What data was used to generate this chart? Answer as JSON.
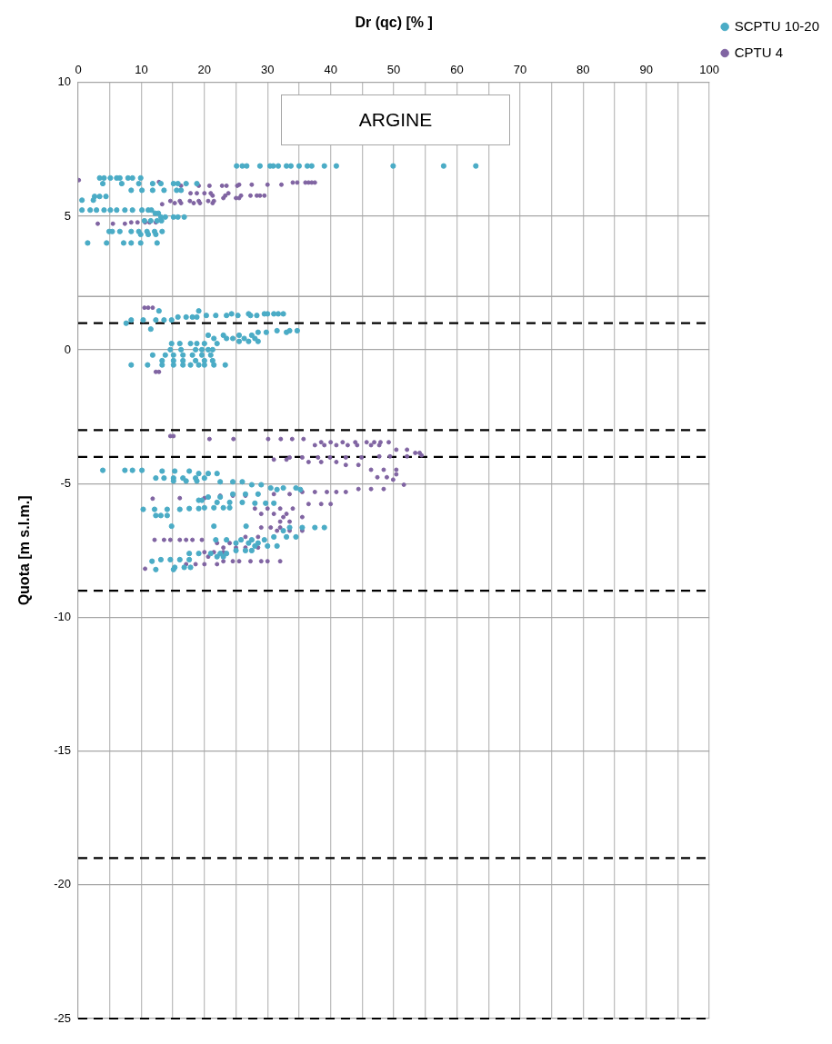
{
  "chart_data": {
    "type": "scatter",
    "xlabel": "Dr (qc) [% ]",
    "ylabel": "Quota [m s.l.m.]",
    "annotations": [
      "ARGINE"
    ],
    "xlim": [
      0,
      100
    ],
    "xticks": [
      0,
      {
        "value": 5,
        "label": null
      },
      10,
      {
        "value": 15,
        "label": null
      },
      20,
      {
        "value": 25,
        "label": null
      },
      30,
      {
        "value": 35,
        "label": null
      },
      40,
      {
        "value": 45,
        "label": null
      },
      50,
      {
        "value": 55,
        "label": null
      },
      60,
      {
        "value": 65,
        "label": null
      },
      70,
      {
        "value": 75,
        "label": null
      },
      80,
      {
        "value": 85,
        "label": null
      },
      90,
      {
        "value": 95,
        "label": null
      },
      100
    ],
    "ylim": [
      -25,
      10
    ],
    "yticks": [
      -25,
      -20,
      -15,
      -10,
      -5,
      0,
      5,
      10
    ],
    "grid": true,
    "legend": "top right",
    "marker": "circle",
    "ref_lines": [
      {
        "axis": "y",
        "value": 2,
        "color": "#a6a6a6",
        "line_style": "solid"
      },
      {
        "axis": "y",
        "value": 1,
        "color": "#000000",
        "line_style": "dashed"
      },
      {
        "axis": "y",
        "value": -3,
        "color": "#000000",
        "line_style": "dashed"
      },
      {
        "axis": "y",
        "value": -4,
        "color": "#000000",
        "line_style": "dashed"
      },
      {
        "axis": "y",
        "value": -9,
        "color": "#000000",
        "line_style": "dashed"
      },
      {
        "axis": "y",
        "value": -19,
        "color": "#000000",
        "line_style": "dashed"
      },
      {
        "axis": "y",
        "value": -25,
        "color": "#000000",
        "line_style": "dashed"
      }
    ],
    "series": [
      {
        "name": "SCPTU 10-20",
        "color": "#4bacc6",
        "x": [
          25.1,
          26.0,
          26.7,
          28.8,
          30.4,
          30.9,
          31.7,
          33.0,
          33.7,
          35.0,
          36.3,
          37.0,
          39.0,
          40.9,
          49.9,
          57.9,
          63.0,
          3.4,
          4.1,
          5.1,
          6.1,
          6.6,
          7.9,
          8.6,
          9.9,
          3.9,
          6.9,
          9.6,
          11.8,
          13.1,
          15.1,
          15.8,
          17.1,
          18.8,
          8.4,
          10.1,
          11.8,
          13.6,
          15.6,
          16.3,
          2.6,
          3.4,
          4.4,
          0.6,
          2.4,
          0.6,
          1.9,
          2.9,
          4.1,
          5.1,
          6.1,
          7.4,
          8.6,
          10.1,
          11.1,
          11.6,
          12.2,
          12.7,
          13.1,
          13.8,
          15.1,
          15.8,
          16.8,
          10.5,
          11.5,
          12.5,
          13.2,
          4.9,
          5.4,
          6.6,
          8.4,
          9.6,
          10.9,
          12.1,
          13.3,
          9.9,
          11.1,
          12.3,
          1.5,
          4.5,
          7.2,
          8.4,
          9.9,
          12.5,
          12.8,
          19.1,
          24.3,
          27.0,
          29.5,
          30.0,
          31.0,
          31.7,
          32.5,
          20.3,
          21.8,
          23.5,
          25.3,
          27.3,
          28.3,
          15.8,
          17.1,
          18.1,
          18.8,
          8.4,
          10.3,
          12.3,
          13.6,
          14.8,
          7.6,
          11.5,
          31.5,
          33.5,
          34.7,
          28.5,
          29.8,
          33.0,
          20.6,
          23.0,
          25.5,
          27.5,
          21.5,
          23.5,
          24.5,
          26.3,
          28.0,
          25.5,
          27.0,
          28.5,
          14.8,
          16.1,
          17.8,
          18.8,
          20.0,
          22.0,
          14.6,
          16.3,
          18.6,
          19.6,
          20.6,
          21.3,
          11.8,
          13.8,
          15.1,
          16.6,
          18.1,
          19.6,
          21.0,
          13.3,
          15.1,
          16.6,
          18.6,
          20.0,
          21.3,
          8.4,
          11.0,
          13.3,
          15.1,
          16.6,
          17.8,
          19.1,
          20.0,
          21.5,
          23.3,
          3.9,
          7.4,
          8.6,
          10.1,
          13.3,
          15.3,
          17.6,
          19.1,
          20.6,
          22.0,
          12.3,
          13.6,
          15.1,
          16.6,
          18.6,
          20.0,
          15.1,
          17.1,
          18.8,
          22.5,
          24.5,
          26.0,
          27.5,
          29.0,
          30.5,
          32.5,
          34.5,
          31.5,
          35.2,
          24.5,
          26.5,
          28.5,
          20.6,
          22.5,
          19.1,
          19.6,
          22.0,
          24.0,
          26.0,
          28.0,
          29.7,
          31.0,
          20.0,
          21.5,
          23.0,
          24.0,
          17.6,
          19.1,
          10.3,
          12.1,
          14.1,
          16.1,
          12.3,
          13.1,
          14.1,
          14.8,
          21.5,
          26.6,
          33.5,
          35.5,
          37.5,
          39.0,
          32.5,
          31.0,
          33.0,
          34.5,
          21.8,
          23.5,
          25.8,
          27.5,
          29.5,
          25.0,
          27.0,
          28.5,
          28.0,
          30.0,
          31.5,
          25.0,
          26.5,
          27.5,
          17.6,
          19.1,
          21.0,
          22.5,
          23.5,
          22.0,
          23.0,
          13.1,
          14.6,
          16.1,
          17.6,
          11.7,
          15.3,
          16.8,
          17.8,
          12.3,
          15.1
        ],
        "values": [
          6.88,
          6.88,
          6.88,
          6.88,
          6.88,
          6.88,
          6.88,
          6.88,
          6.88,
          6.88,
          6.88,
          6.88,
          6.88,
          6.88,
          6.88,
          6.88,
          6.88,
          6.43,
          6.43,
          6.43,
          6.43,
          6.43,
          6.43,
          6.43,
          6.43,
          6.22,
          6.22,
          6.22,
          6.22,
          6.22,
          6.22,
          6.22,
          6.22,
          6.22,
          5.97,
          5.97,
          5.97,
          5.97,
          5.97,
          5.97,
          5.74,
          5.74,
          5.74,
          5.6,
          5.6,
          5.23,
          5.23,
          5.23,
          5.23,
          5.23,
          5.23,
          5.23,
          5.23,
          5.23,
          5.23,
          5.23,
          5.11,
          5.11,
          4.97,
          4.97,
          4.97,
          4.97,
          4.97,
          4.83,
          4.83,
          4.83,
          4.83,
          4.43,
          4.43,
          4.43,
          4.43,
          4.43,
          4.43,
          4.43,
          4.43,
          4.32,
          4.32,
          4.32,
          4.0,
          4.0,
          4.0,
          4.0,
          4.0,
          4.0,
          1.46,
          1.46,
          1.35,
          1.35,
          1.35,
          1.35,
          1.35,
          1.35,
          1.35,
          1.29,
          1.29,
          1.29,
          1.29,
          1.29,
          1.29,
          1.23,
          1.23,
          1.23,
          1.23,
          1.12,
          1.12,
          1.12,
          1.12,
          1.12,
          1.0,
          0.78,
          0.72,
          0.72,
          0.72,
          0.66,
          0.66,
          0.66,
          0.55,
          0.55,
          0.55,
          0.55,
          0.43,
          0.43,
          0.43,
          0.43,
          0.43,
          0.32,
          0.32,
          0.32,
          0.24,
          0.24,
          0.24,
          0.24,
          0.24,
          0.24,
          0.01,
          0.01,
          0.01,
          0.01,
          0.01,
          0.01,
          -0.19,
          -0.19,
          -0.19,
          -0.19,
          -0.19,
          -0.19,
          -0.19,
          -0.4,
          -0.4,
          -0.4,
          -0.4,
          -0.4,
          -0.4,
          -0.56,
          -0.56,
          -0.56,
          -0.56,
          -0.56,
          -0.56,
          -0.56,
          -0.56,
          -0.56,
          -0.56,
          -4.5,
          -4.5,
          -4.5,
          -4.5,
          -4.53,
          -4.53,
          -4.53,
          -4.62,
          -4.62,
          -4.62,
          -4.79,
          -4.79,
          -4.79,
          -4.79,
          -4.79,
          -4.79,
          -4.9,
          -4.9,
          -4.9,
          -4.93,
          -4.93,
          -4.93,
          -5.04,
          -5.04,
          -5.16,
          -5.16,
          -5.16,
          -5.22,
          -5.22,
          -5.39,
          -5.39,
          -5.39,
          -5.5,
          -5.5,
          -5.62,
          -5.62,
          -5.7,
          -5.7,
          -5.7,
          -5.73,
          -5.73,
          -5.73,
          -5.9,
          -5.9,
          -5.9,
          -5.9,
          -5.93,
          -5.93,
          -5.96,
          -5.96,
          -5.96,
          -5.96,
          -6.19,
          -6.19,
          -6.19,
          -6.59,
          -6.59,
          -6.59,
          -6.64,
          -6.64,
          -6.64,
          -6.64,
          -6.76,
          -6.99,
          -6.99,
          -6.99,
          -7.1,
          -7.1,
          -7.1,
          -7.1,
          -7.1,
          -7.22,
          -7.22,
          -7.22,
          -7.33,
          -7.33,
          -7.33,
          -7.5,
          -7.5,
          -7.5,
          -7.61,
          -7.61,
          -7.61,
          -7.61,
          -7.61,
          -7.73,
          -7.73,
          -7.84,
          -7.84,
          -7.84,
          -7.84,
          -7.9,
          -8.13,
          -8.13,
          -8.13,
          -8.21,
          -8.21
        ]
      },
      {
        "name": "CPTU 4",
        "color": "#8064a2",
        "x": [
          0.1,
          12.8,
          34.0,
          34.7,
          36.0,
          36.5,
          37.0,
          37.5,
          25.5,
          27.5,
          30.0,
          32.2,
          16.3,
          19.1,
          20.8,
          22.8,
          23.5,
          25.2,
          17.8,
          18.8,
          20.0,
          21.0,
          23.8,
          21.3,
          23.3,
          25.8,
          27.3,
          28.3,
          28.8,
          29.5,
          23.0,
          25.0,
          25.5,
          14.6,
          16.1,
          17.7,
          19.1,
          20.6,
          21.5,
          15.3,
          16.3,
          18.3,
          19.3,
          21.3,
          13.3,
          8.4,
          9.4,
          10.6,
          11.3,
          12.3,
          3.1,
          5.5,
          7.4,
          10.5,
          11.1,
          11.8,
          12.3,
          12.8,
          14.6,
          15.1,
          20.8,
          24.6,
          30.1,
          32.1,
          33.9,
          35.7,
          38.5,
          40.0,
          41.9,
          43.9,
          45.7,
          46.9,
          47.9,
          49.2,
          37.5,
          39.0,
          40.9,
          42.7,
          44.2,
          46.4,
          47.7,
          50.4,
          52.1,
          53.4,
          54.1,
          54.4,
          47.7,
          49.4,
          52.1,
          33.5,
          35.5,
          38.0,
          39.9,
          42.4,
          44.9,
          31.0,
          33.0,
          36.5,
          38.5,
          40.9,
          42.4,
          44.4,
          46.4,
          48.4,
          50.4,
          50.4,
          47.4,
          48.9,
          49.9,
          51.6,
          48.4,
          46.4,
          44.4,
          42.4,
          40.9,
          39.4,
          37.5,
          35.5,
          33.5,
          31.0,
          28.5,
          26.5,
          24.5,
          22.5,
          20.0,
          16.1,
          11.8,
          36.5,
          38.5,
          40.0,
          28.0,
          30.0,
          32.0,
          34.0,
          29.0,
          31.0,
          33.0,
          32.5,
          35.5,
          32.0,
          33.5,
          29.0,
          30.5,
          32.0,
          31.5,
          33.5,
          35.5,
          26.5,
          28.5,
          12.1,
          13.6,
          14.6,
          16.1,
          17.1,
          18.1,
          19.6,
          22.0,
          24.0,
          23.0,
          25.0,
          26.5,
          28.5,
          20.0,
          21.5,
          23.0,
          20.6,
          22.0,
          23.0,
          24.5,
          25.5,
          27.3,
          29.0,
          30.0,
          32.0,
          17.1,
          18.6,
          20.0,
          22.0,
          10.6
        ],
        "values": [
          6.35,
          6.28,
          6.26,
          6.26,
          6.26,
          6.26,
          6.26,
          6.26,
          6.18,
          6.18,
          6.18,
          6.18,
          6.14,
          6.14,
          6.14,
          6.14,
          6.14,
          6.14,
          5.86,
          5.86,
          5.86,
          5.86,
          5.86,
          5.77,
          5.77,
          5.77,
          5.77,
          5.77,
          5.77,
          5.77,
          5.68,
          5.68,
          5.68,
          5.57,
          5.57,
          5.57,
          5.57,
          5.57,
          5.57,
          5.49,
          5.49,
          5.49,
          5.49,
          5.49,
          5.45,
          4.77,
          4.77,
          4.77,
          4.77,
          4.77,
          4.72,
          4.72,
          4.72,
          1.58,
          1.58,
          1.58,
          -0.82,
          -0.82,
          -3.22,
          -3.22,
          -3.33,
          -3.33,
          -3.33,
          -3.33,
          -3.33,
          -3.33,
          -3.45,
          -3.45,
          -3.45,
          -3.45,
          -3.45,
          -3.45,
          -3.45,
          -3.45,
          -3.56,
          -3.56,
          -3.56,
          -3.56,
          -3.56,
          -3.56,
          -3.56,
          -3.73,
          -3.73,
          -3.85,
          -3.85,
          -3.94,
          -3.98,
          -3.98,
          -3.98,
          -4.02,
          -4.02,
          -4.02,
          -4.02,
          -4.02,
          -4.02,
          -4.1,
          -4.1,
          -4.19,
          -4.19,
          -4.19,
          -4.3,
          -4.3,
          -4.48,
          -4.48,
          -4.48,
          -4.65,
          -4.76,
          -4.76,
          -4.85,
          -5.04,
          -5.2,
          -5.2,
          -5.2,
          -5.31,
          -5.31,
          -5.31,
          -5.31,
          -5.31,
          -5.39,
          -5.39,
          -5.39,
          -5.45,
          -5.45,
          -5.45,
          -5.54,
          -5.54,
          -5.56,
          -5.76,
          -5.76,
          -5.76,
          -5.93,
          -5.93,
          -5.93,
          -5.93,
          -6.13,
          -6.13,
          -6.13,
          -6.25,
          -6.25,
          -6.42,
          -6.42,
          -6.64,
          -6.64,
          -6.64,
          -6.76,
          -6.76,
          -6.76,
          -6.99,
          -6.99,
          -7.1,
          -7.1,
          -7.1,
          -7.1,
          -7.1,
          -7.1,
          -7.1,
          -7.22,
          -7.22,
          -7.39,
          -7.39,
          -7.39,
          -7.39,
          -7.56,
          -7.56,
          -7.56,
          -7.73,
          -7.73,
          -7.9,
          -7.9,
          -7.9,
          -7.9,
          -7.9,
          -7.9,
          -7.9,
          -8.01,
          -8.01,
          -8.01,
          -8.01,
          -8.18
        ]
      }
    ]
  }
}
